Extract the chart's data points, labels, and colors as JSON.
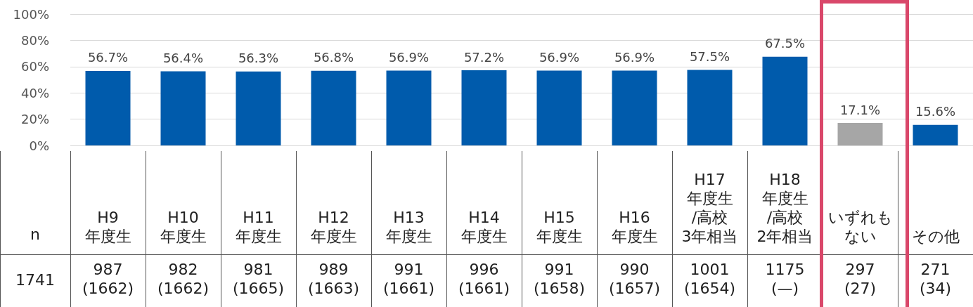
{
  "chart_data": {
    "type": "bar",
    "categories": [
      "H9\n年度生",
      "H10\n年度生",
      "H11\n年度生",
      "H12\n年度生",
      "H13\n年度生",
      "H14\n年度生",
      "H15\n年度生",
      "H16\n年度生",
      "H17\n年度生\n/高校\n3年相当",
      "H18\n年度生\n/高校\n2年相当",
      "いずれもない",
      "その他"
    ],
    "values": [
      56.7,
      56.4,
      56.3,
      56.8,
      56.9,
      57.2,
      56.9,
      56.9,
      57.5,
      67.5,
      17.1,
      15.6
    ],
    "colors": [
      "#005bac",
      "#005bac",
      "#005bac",
      "#005bac",
      "#005bac",
      "#005bac",
      "#005bac",
      "#005bac",
      "#005bac",
      "#005bac",
      "#a6a6a6",
      "#005bac"
    ],
    "value_labels": [
      "56.7%",
      "56.4%",
      "56.3%",
      "56.8%",
      "56.9%",
      "57.2%",
      "56.9%",
      "56.9%",
      "57.5%",
      "67.5%",
      "17.1%",
      "15.6%"
    ],
    "ylim": [
      0,
      100
    ],
    "yticks": [
      {
        "value": 0,
        "label": "0%"
      },
      {
        "value": 20,
        "label": "20%"
      },
      {
        "value": 40,
        "label": "40%"
      },
      {
        "value": 60,
        "label": "60%"
      },
      {
        "value": 80,
        "label": "80%"
      },
      {
        "value": 100,
        "label": "100%"
      }
    ],
    "grid": "y",
    "annotations": [
      "n",
      "1741",
      "987\n(1662)",
      "982\n(1662)",
      "981\n(1665)",
      "989\n(1663)",
      "991\n(1661)",
      "996\n(1661)",
      "991\n(1658)",
      "990\n(1657)",
      "1001\n(1654)",
      "1175\n(—)",
      "297\n(27)",
      "271\n(34)"
    ]
  }
}
